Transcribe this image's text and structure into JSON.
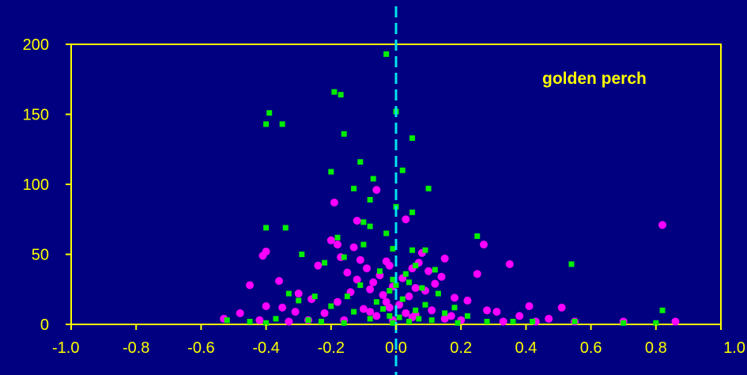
{
  "chart_data": {
    "type": "scatter",
    "title": "",
    "xlabel": "",
    "ylabel": "",
    "xlim": [
      -1.0,
      1.0
    ],
    "ylim": [
      0,
      200
    ],
    "x_ticks": [
      "-1.0",
      "-0.8",
      "-0.6",
      "-0.4",
      "-0.2",
      "0.0",
      "0.2",
      "0.4",
      "0.6",
      "0.8",
      "1.0"
    ],
    "y_ticks": [
      "0",
      "50",
      "100",
      "150",
      "200"
    ],
    "grid": false,
    "annotation": "golden perch",
    "reference_line_x": 0.0,
    "colors": {
      "background": "#000080",
      "axis": "#FFFF00",
      "reference_line": "#00E5EE",
      "series_a": "#FF00FF",
      "series_b": "#00EE00"
    },
    "series": [
      {
        "marker": "circle",
        "color": "#FF00FF",
        "points": [
          [
            -0.06,
            96
          ],
          [
            -0.19,
            87
          ],
          [
            0.03,
            75
          ],
          [
            -0.12,
            74
          ],
          [
            0.82,
            71
          ],
          [
            -0.2,
            60
          ],
          [
            -0.18,
            57
          ],
          [
            -0.13,
            55
          ],
          [
            -0.4,
            52
          ],
          [
            -0.41,
            49
          ],
          [
            0.27,
            57
          ],
          [
            0.08,
            51
          ],
          [
            -0.17,
            48
          ],
          [
            -0.11,
            46
          ],
          [
            0.15,
            47
          ],
          [
            -0.03,
            45
          ],
          [
            0.07,
            44
          ],
          [
            0.35,
            43
          ],
          [
            0.05,
            40
          ],
          [
            -0.02,
            42
          ],
          [
            -0.24,
            42
          ],
          [
            -0.09,
            40
          ],
          [
            0.1,
            38
          ],
          [
            0.25,
            36
          ],
          [
            -0.15,
            37
          ],
          [
            -0.36,
            31
          ],
          [
            -0.45,
            28
          ],
          [
            -0.05,
            35
          ],
          [
            0.14,
            34
          ],
          [
            -0.12,
            32
          ],
          [
            -0.07,
            30
          ],
          [
            0.02,
            33
          ],
          [
            0.12,
            29
          ],
          [
            -0.01,
            27
          ],
          [
            0.06,
            26
          ],
          [
            -0.3,
            22
          ],
          [
            -0.26,
            18
          ],
          [
            -0.08,
            25
          ],
          [
            0.09,
            24
          ],
          [
            -0.14,
            23
          ],
          [
            -0.04,
            21
          ],
          [
            0.04,
            20
          ],
          [
            0.18,
            19
          ],
          [
            0.22,
            17
          ],
          [
            -0.18,
            16
          ],
          [
            -0.4,
            13
          ],
          [
            -0.35,
            12
          ],
          [
            0.41,
            13
          ],
          [
            0.51,
            12
          ],
          [
            -0.31,
            9
          ],
          [
            0.28,
            10
          ],
          [
            0.31,
            9
          ],
          [
            -0.22,
            8
          ],
          [
            -0.02,
            12
          ],
          [
            0.01,
            14
          ],
          [
            -0.1,
            11
          ],
          [
            0.11,
            10
          ],
          [
            -0.48,
            8
          ],
          [
            0.38,
            6
          ],
          [
            0.47,
            4
          ],
          [
            -0.06,
            6
          ],
          [
            0.05,
            5
          ],
          [
            0.15,
            4
          ],
          [
            -0.16,
            3
          ],
          [
            0.2,
            3
          ],
          [
            -0.27,
            3
          ],
          [
            0.33,
            2
          ],
          [
            0.55,
            2
          ],
          [
            0.7,
            2
          ],
          [
            0.86,
            2
          ],
          [
            -0.53,
            4
          ],
          [
            -0.42,
            3
          ],
          [
            -0.33,
            2
          ],
          [
            0.43,
            2
          ],
          [
            -0.01,
            3
          ],
          [
            0.03,
            8
          ],
          [
            -0.03,
            16
          ],
          [
            0.06,
            7
          ],
          [
            -0.08,
            9
          ],
          [
            0.17,
            6
          ]
        ]
      },
      {
        "marker": "square",
        "color": "#00EE00",
        "points": [
          [
            -0.03,
            193
          ],
          [
            -0.19,
            166
          ],
          [
            -0.17,
            164
          ],
          [
            0.0,
            152
          ],
          [
            -0.39,
            151
          ],
          [
            -0.4,
            143
          ],
          [
            -0.35,
            143
          ],
          [
            -0.16,
            136
          ],
          [
            0.05,
            133
          ],
          [
            -0.11,
            116
          ],
          [
            0.02,
            110
          ],
          [
            -0.2,
            109
          ],
          [
            -0.07,
            104
          ],
          [
            -0.13,
            97
          ],
          [
            0.1,
            97
          ],
          [
            -0.08,
            89
          ],
          [
            0.0,
            84
          ],
          [
            0.05,
            80
          ],
          [
            -0.1,
            73
          ],
          [
            -0.4,
            69
          ],
          [
            -0.34,
            69
          ],
          [
            -0.03,
            65
          ],
          [
            0.25,
            63
          ],
          [
            -0.08,
            70
          ],
          [
            -0.18,
            62
          ],
          [
            -0.1,
            57
          ],
          [
            0.05,
            53
          ],
          [
            0.09,
            53
          ],
          [
            -0.01,
            54
          ],
          [
            -0.16,
            48
          ],
          [
            0.06,
            42
          ],
          [
            -0.29,
            50
          ],
          [
            -0.22,
            44
          ],
          [
            0.54,
            43
          ],
          [
            -0.05,
            38
          ],
          [
            0.03,
            36
          ],
          [
            -0.01,
            32
          ],
          [
            0.04,
            30
          ],
          [
            0.12,
            39
          ],
          [
            -0.11,
            28
          ],
          [
            0.08,
            26
          ],
          [
            -0.02,
            24
          ],
          [
            0.13,
            22
          ],
          [
            -0.15,
            20
          ],
          [
            0.0,
            28
          ],
          [
            -0.33,
            22
          ],
          [
            -0.25,
            20
          ],
          [
            0.02,
            18
          ],
          [
            -0.06,
            16
          ],
          [
            0.09,
            14
          ],
          [
            -0.3,
            17
          ],
          [
            -0.2,
            13
          ],
          [
            0.18,
            12
          ],
          [
            -0.04,
            11
          ],
          [
            0.06,
            10
          ],
          [
            -0.13,
            9
          ],
          [
            0.15,
            8
          ],
          [
            -0.02,
            6
          ],
          [
            0.01,
            5
          ],
          [
            0.22,
            6
          ],
          [
            -0.08,
            4
          ],
          [
            0.11,
            3
          ],
          [
            -0.37,
            4
          ],
          [
            -0.27,
            3
          ],
          [
            0.28,
            2
          ],
          [
            0.36,
            2
          ],
          [
            0.42,
            2
          ],
          [
            0.55,
            2
          ],
          [
            0.7,
            1
          ],
          [
            0.8,
            1
          ],
          [
            0.82,
            10
          ],
          [
            -0.52,
            3
          ],
          [
            -0.45,
            2
          ],
          [
            -0.4,
            1
          ],
          [
            -0.23,
            2
          ],
          [
            0.04,
            2
          ],
          [
            -0.01,
            1
          ],
          [
            0.19,
            1
          ],
          [
            -0.16,
            1
          ],
          [
            0.07,
            4
          ]
        ]
      }
    ]
  }
}
